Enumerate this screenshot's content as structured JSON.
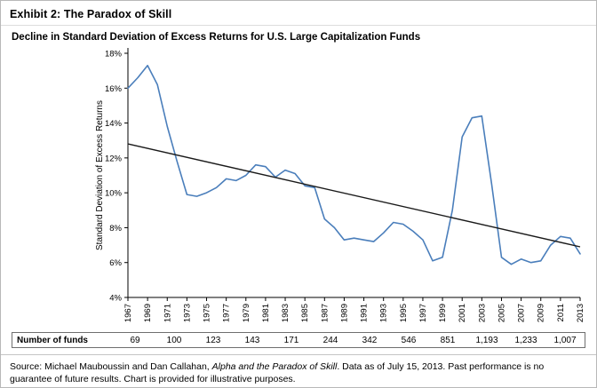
{
  "exhibit_title": "Exhibit 2: The Paradox of Skill",
  "chart_data": {
    "type": "line",
    "title": "Decline in Standard Deviation of Excess Returns for U.S. Large Capitalization Funds",
    "xlabel": "",
    "ylabel": "Standard Deviation of Excess Returns",
    "ylim": [
      4,
      18
    ],
    "ytick_step": 2,
    "ytick_suffix": "%",
    "grid": false,
    "legend": "none",
    "x": [
      1967,
      1968,
      1969,
      1970,
      1971,
      1972,
      1973,
      1974,
      1975,
      1976,
      1977,
      1978,
      1979,
      1980,
      1981,
      1982,
      1983,
      1984,
      1985,
      1986,
      1987,
      1988,
      1989,
      1990,
      1991,
      1992,
      1993,
      1994,
      1995,
      1996,
      1997,
      1998,
      1999,
      2000,
      2001,
      2002,
      2003,
      2004,
      2005,
      2006,
      2007,
      2008,
      2009,
      2010,
      2011,
      2012,
      2013
    ],
    "xtick_labels": [
      "1967",
      "1969",
      "1971",
      "1973",
      "1975",
      "1977",
      "1979",
      "1981",
      "1983",
      "1985",
      "1987",
      "1989",
      "1991",
      "1993",
      "1995",
      "1997",
      "1999",
      "2001",
      "2003",
      "2005",
      "2007",
      "2009",
      "2011",
      "2013"
    ],
    "series": [
      {
        "name": "Standard deviation of excess returns",
        "color": "#4a7ebb",
        "values": [
          16.0,
          16.6,
          17.3,
          16.2,
          13.8,
          11.8,
          9.9,
          9.8,
          10.0,
          10.3,
          10.8,
          10.7,
          11.0,
          11.6,
          11.5,
          10.9,
          11.3,
          11.1,
          10.4,
          10.3,
          8.5,
          8.0,
          7.3,
          7.4,
          7.3,
          7.2,
          7.7,
          8.3,
          8.2,
          7.8,
          7.3,
          6.1,
          6.3,
          9.0,
          13.2,
          14.3,
          14.4,
          10.5,
          6.3,
          5.9,
          6.2,
          6.0,
          6.1,
          7.0,
          7.5,
          7.4,
          6.5
        ]
      }
    ],
    "trend_line": {
      "color": "#1a1a1a",
      "x": [
        1967,
        2013
      ],
      "values": [
        12.8,
        6.9
      ]
    }
  },
  "funds_table": {
    "label": "Number of funds",
    "values": [
      "69",
      "100",
      "123",
      "143",
      "171",
      "244",
      "342",
      "546",
      "851",
      "1,193",
      "1,233",
      "1,007"
    ]
  },
  "source": {
    "prefix": "Source: Michael Mauboussin and Dan Callahan, ",
    "italic": "Alpha and the Paradox of Skill",
    "suffix": ". Data as of July 15, 2013. Past performance is no guarantee of future results. Chart is provided for illustrative purposes."
  }
}
